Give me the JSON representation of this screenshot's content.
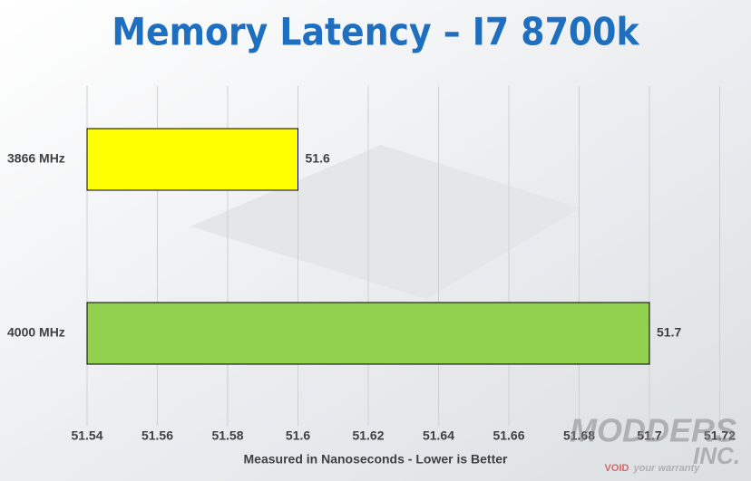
{
  "chart_data": {
    "type": "hbar",
    "title": "Memory Latency – I7 8700k",
    "xlabel": "Measured in Nanoseconds - Lower is Better",
    "categories": [
      "3866 MHz",
      "4000 MHz"
    ],
    "values": [
      51.6,
      51.7
    ],
    "colors": [
      "#ffff00",
      "#92d050"
    ],
    "xlim": [
      51.54,
      51.72
    ],
    "xticks": [
      51.54,
      51.56,
      51.58,
      51.6,
      51.62,
      51.64,
      51.66,
      51.68,
      51.7,
      51.72
    ],
    "grid": true,
    "watermark": [
      "MODDERS",
      "INC.",
      "VOID",
      "your warranty"
    ]
  }
}
